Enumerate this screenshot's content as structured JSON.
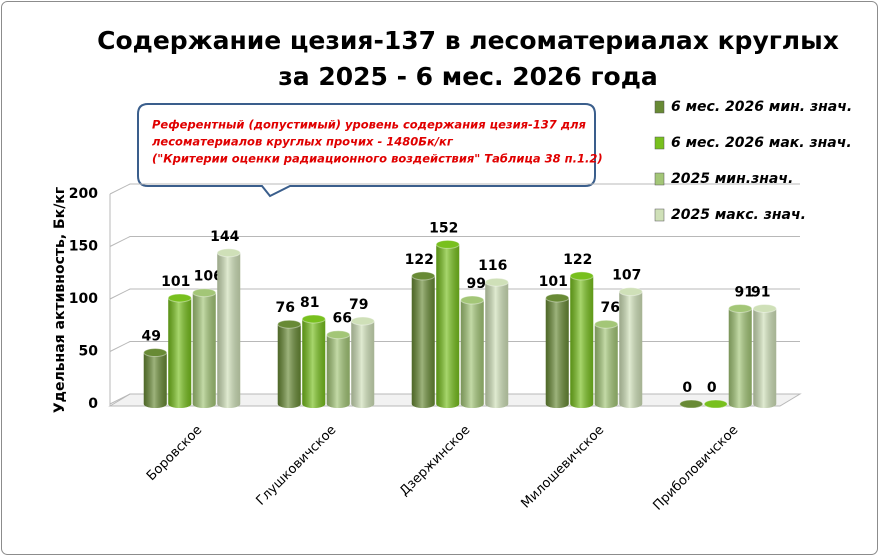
{
  "chart_data": {
    "type": "bar",
    "title": [
      "Содержание цезия-137 в лесоматериалах круглых",
      "за 2025 - 6 мес. 2026 года"
    ],
    "y_label": "Удельная активность, Бк/кг",
    "annotation": [
      "Референтный (допустимый) уровень содержания цезия-137 для",
      "лесоматериалов круглых прочих - 1480Бк/кг",
      "(\"Критерии оценки радиационного воздействия\" Таблица 38 п.1.2)"
    ],
    "categories": [
      "Боровское",
      "Глушковичское",
      "Дзержинское",
      "Милошевичское",
      "Приболовичское"
    ],
    "series": [
      {
        "name": "6 мес. 2026 мин. знач.",
        "color": "#688a35",
        "values": [
          49,
          76,
          122,
          101,
          0
        ]
      },
      {
        "name": "6 мес. 2026 мак. знач.",
        "color": "#78c01e",
        "values": [
          101,
          81,
          152,
          122,
          0
        ]
      },
      {
        "name": "2025 мин.знач.",
        "color": "#a3c677",
        "values": [
          106,
          66,
          99,
          76,
          91
        ]
      },
      {
        "name": "2025 макс. знач.",
        "color": "#cfe0b8",
        "values": [
          144,
          79,
          116,
          107,
          91
        ]
      }
    ],
    "ylim": [
      0,
      200
    ],
    "yticks": [
      0,
      50,
      100,
      150,
      200
    ],
    "grid": true,
    "legend": "right"
  }
}
